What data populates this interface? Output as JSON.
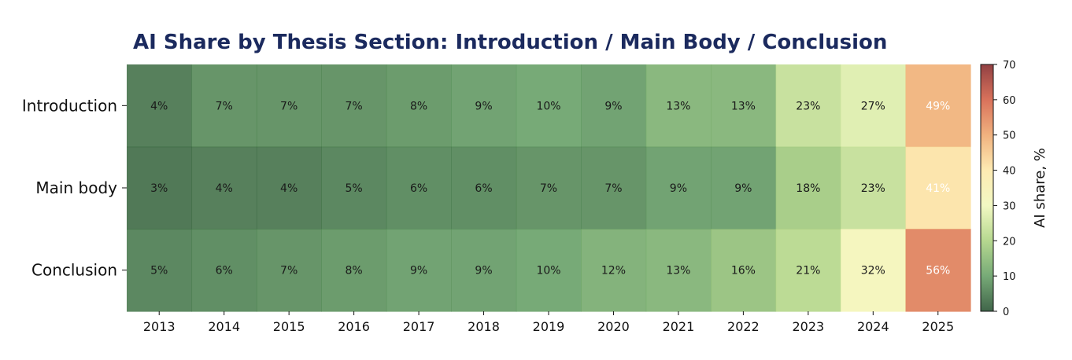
{
  "chart_data": {
    "type": "heatmap",
    "title": "AI Share by Thesis Section: Introduction / Main Body / Conclusion",
    "rows": [
      "Introduction",
      "Main body",
      "Conclusion"
    ],
    "columns": [
      "2013",
      "2014",
      "2015",
      "2016",
      "2017",
      "2018",
      "2019",
      "2020",
      "2021",
      "2022",
      "2023",
      "2024",
      "2025"
    ],
    "values": [
      [
        4,
        7,
        7,
        7,
        8,
        9,
        10,
        9,
        13,
        13,
        23,
        27,
        49
      ],
      [
        3,
        4,
        4,
        5,
        6,
        6,
        7,
        7,
        9,
        9,
        18,
        23,
        41
      ],
      [
        5,
        6,
        7,
        8,
        9,
        9,
        10,
        12,
        13,
        16,
        21,
        32,
        56
      ]
    ],
    "value_suffix": "%",
    "colorbar": {
      "label": "AI share, %",
      "min": 0,
      "max": 70,
      "ticks": [
        0,
        10,
        20,
        30,
        40,
        50,
        60,
        70
      ],
      "colors": [
        "#1f4a2a",
        "#5f9b5f",
        "#a9d17c",
        "#f0f7b8",
        "#fde7a5",
        "#eea468",
        "#d2593e",
        "#7f1f22"
      ]
    }
  }
}
